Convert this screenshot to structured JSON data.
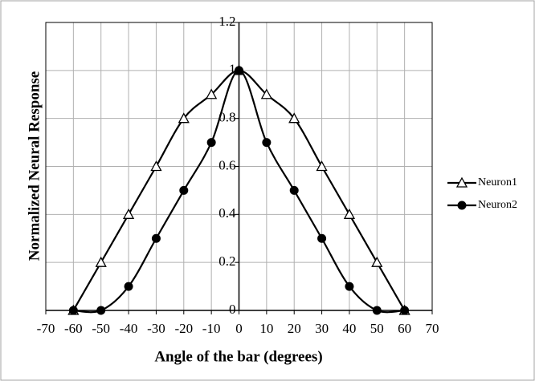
{
  "chart_data": {
    "type": "line",
    "xlabel": "Angle of the bar (degrees)",
    "ylabel": "Normalized Neural Response",
    "x": [
      -60,
      -50,
      -40,
      -30,
      -20,
      -10,
      0,
      10,
      20,
      30,
      40,
      50,
      60
    ],
    "series": [
      {
        "name": "Neuron1",
        "color": "#000000",
        "marker": "triangle-open",
        "values": [
          0,
          0.2,
          0.4,
          0.6,
          0.8,
          0.9,
          1,
          0.9,
          0.8,
          0.6,
          0.4,
          0.2,
          0
        ]
      },
      {
        "name": "Neuron2",
        "color": "#000000",
        "marker": "circle-filled",
        "values": [
          0,
          0,
          0.1,
          0.3,
          0.5,
          0.7,
          1,
          0.7,
          0.5,
          0.3,
          0.1,
          0,
          0
        ]
      }
    ],
    "xlim": [
      -70,
      70
    ],
    "xticks": [
      -70,
      -60,
      -50,
      -40,
      -30,
      -20,
      -10,
      0,
      10,
      20,
      30,
      40,
      50,
      60,
      70
    ],
    "ylim": [
      0,
      1.2
    ],
    "yticks": [
      0,
      0.2,
      0.4,
      0.6,
      0.8,
      1,
      1.2
    ],
    "grid": true,
    "smooth": true,
    "legend": "right"
  }
}
